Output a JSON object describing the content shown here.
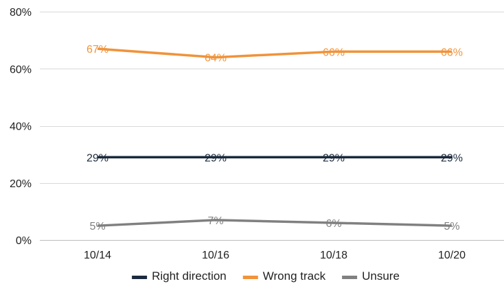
{
  "chart_data": {
    "type": "line",
    "title": "",
    "xlabel": "",
    "ylabel": "",
    "categories": [
      "10/14",
      "10/16",
      "10/18",
      "10/20"
    ],
    "ylim": [
      0,
      80
    ],
    "y_ticks": [
      "0%",
      "20%",
      "40%",
      "60%",
      "80%"
    ],
    "y_tick_values": [
      0,
      20,
      40,
      60,
      80
    ],
    "grid": true,
    "legend_position": "bottom",
    "series": [
      {
        "name": "Right direction",
        "color": "#1b2a3d",
        "values": [
          29,
          29,
          29,
          29
        ],
        "labels": [
          "29%",
          "29%",
          "29%",
          "29%"
        ]
      },
      {
        "name": "Wrong track",
        "color": "#f0933a",
        "values": [
          67,
          64,
          66,
          66
        ],
        "labels": [
          "67%",
          "64%",
          "66%",
          "66%"
        ]
      },
      {
        "name": "Unsure",
        "color": "#808080",
        "values": [
          5,
          7,
          6,
          5
        ],
        "labels": [
          "5%",
          "7%",
          "6%",
          "5%"
        ]
      }
    ]
  }
}
